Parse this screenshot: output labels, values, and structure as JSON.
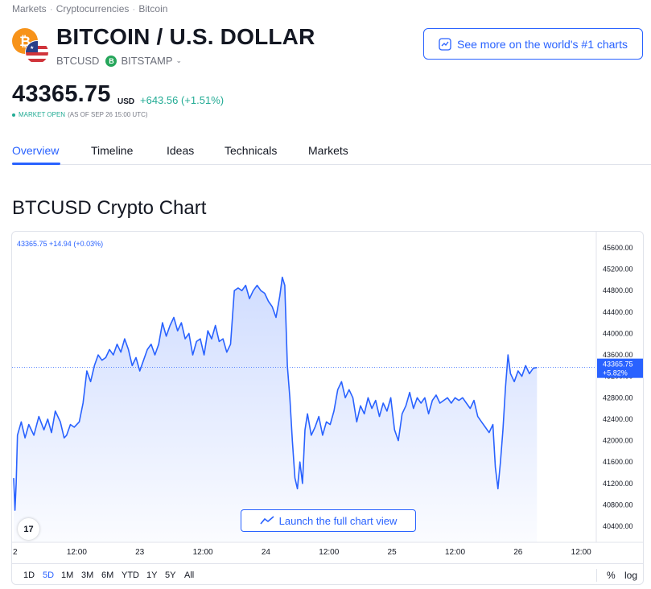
{
  "breadcrumb": [
    "Markets",
    "Cryptocurrencies",
    "Bitcoin"
  ],
  "header": {
    "title": "BITCOIN / U.S. DOLLAR",
    "symbol": "BTCUSD",
    "exchange_badge": "B",
    "exchange": "BITSTAMP",
    "more_charts_label": "See more on the world's #1 charts"
  },
  "quote": {
    "price": "43365.75",
    "currency": "USD",
    "change": "+643.56 (+1.51%)",
    "status_open": "MARKET OPEN",
    "status_time": "(AS OF SEP 26 15:00 UTC)"
  },
  "tabs": [
    {
      "label": "Overview",
      "active": true
    },
    {
      "label": "Timeline",
      "active": false
    },
    {
      "label": "Ideas",
      "active": false
    },
    {
      "label": "Technicals",
      "active": false
    },
    {
      "label": "Markets",
      "active": false
    }
  ],
  "section_title": "BTCUSD Crypto Chart",
  "chart_data": {
    "type": "area",
    "legend_text": "43365.75  +14.94 (+0.03%)",
    "current_price_label": "43365.75",
    "current_change_label": "+5.82%",
    "current_price": 43365.75,
    "y_ticks": [
      "45600.00",
      "45200.00",
      "44800.00",
      "44400.00",
      "44000.00",
      "43600.00",
      "43200.00",
      "42800.00",
      "42400.00",
      "42000.00",
      "41600.00",
      "41200.00",
      "40800.00",
      "40400.00"
    ],
    "ylim": [
      40100,
      45900
    ],
    "x_ticks": [
      {
        "label": "2",
        "t": 0
      },
      {
        "label": "12:00",
        "t": 0.5
      },
      {
        "label": "23",
        "t": 1
      },
      {
        "label": "12:00",
        "t": 1.5
      },
      {
        "label": "24",
        "t": 2
      },
      {
        "label": "12:00",
        "t": 2.5
      },
      {
        "label": "25",
        "t": 3
      },
      {
        "label": "12:00",
        "t": 3.5
      },
      {
        "label": "26",
        "t": 4
      },
      {
        "label": "12:00",
        "t": 4.5
      }
    ],
    "xlim": [
      0,
      4.62
    ],
    "points": [
      [
        0.0,
        41300
      ],
      [
        0.01,
        40700
      ],
      [
        0.02,
        41200
      ],
      [
        0.03,
        42100
      ],
      [
        0.06,
        42350
      ],
      [
        0.09,
        42050
      ],
      [
        0.12,
        42300
      ],
      [
        0.16,
        42100
      ],
      [
        0.2,
        42450
      ],
      [
        0.24,
        42200
      ],
      [
        0.27,
        42400
      ],
      [
        0.3,
        42150
      ],
      [
        0.33,
        42550
      ],
      [
        0.37,
        42350
      ],
      [
        0.4,
        42050
      ],
      [
        0.42,
        42100
      ],
      [
        0.45,
        42300
      ],
      [
        0.48,
        42250
      ],
      [
        0.52,
        42350
      ],
      [
        0.55,
        42700
      ],
      [
        0.58,
        43300
      ],
      [
        0.61,
        43100
      ],
      [
        0.64,
        43400
      ],
      [
        0.67,
        43600
      ],
      [
        0.7,
        43500
      ],
      [
        0.73,
        43550
      ],
      [
        0.76,
        43700
      ],
      [
        0.79,
        43600
      ],
      [
        0.82,
        43800
      ],
      [
        0.85,
        43650
      ],
      [
        0.88,
        43900
      ],
      [
        0.91,
        43700
      ],
      [
        0.94,
        43400
      ],
      [
        0.97,
        43550
      ],
      [
        1.0,
        43300
      ],
      [
        1.03,
        43500
      ],
      [
        1.06,
        43700
      ],
      [
        1.09,
        43800
      ],
      [
        1.12,
        43600
      ],
      [
        1.15,
        43800
      ],
      [
        1.18,
        44200
      ],
      [
        1.21,
        43950
      ],
      [
        1.24,
        44150
      ],
      [
        1.27,
        44300
      ],
      [
        1.3,
        44050
      ],
      [
        1.33,
        44200
      ],
      [
        1.36,
        43900
      ],
      [
        1.39,
        44000
      ],
      [
        1.42,
        43600
      ],
      [
        1.45,
        43850
      ],
      [
        1.48,
        43900
      ],
      [
        1.51,
        43600
      ],
      [
        1.54,
        44050
      ],
      [
        1.57,
        43900
      ],
      [
        1.6,
        44150
      ],
      [
        1.63,
        43850
      ],
      [
        1.66,
        43900
      ],
      [
        1.69,
        43650
      ],
      [
        1.72,
        43800
      ],
      [
        1.75,
        44800
      ],
      [
        1.78,
        44850
      ],
      [
        1.81,
        44800
      ],
      [
        1.84,
        44900
      ],
      [
        1.87,
        44650
      ],
      [
        1.9,
        44800
      ],
      [
        1.93,
        44900
      ],
      [
        1.96,
        44800
      ],
      [
        1.99,
        44750
      ],
      [
        2.02,
        44600
      ],
      [
        2.05,
        44500
      ],
      [
        2.08,
        44300
      ],
      [
        2.11,
        44700
      ],
      [
        2.13,
        45050
      ],
      [
        2.15,
        44900
      ],
      [
        2.17,
        43400
      ],
      [
        2.19,
        42800
      ],
      [
        2.21,
        42000
      ],
      [
        2.23,
        41300
      ],
      [
        2.25,
        41100
      ],
      [
        2.27,
        41600
      ],
      [
        2.29,
        41200
      ],
      [
        2.31,
        42200
      ],
      [
        2.33,
        42500
      ],
      [
        2.36,
        42100
      ],
      [
        2.39,
        42250
      ],
      [
        2.42,
        42450
      ],
      [
        2.45,
        42100
      ],
      [
        2.48,
        42350
      ],
      [
        2.51,
        42300
      ],
      [
        2.54,
        42550
      ],
      [
        2.57,
        42950
      ],
      [
        2.6,
        43100
      ],
      [
        2.63,
        42800
      ],
      [
        2.66,
        42950
      ],
      [
        2.69,
        42800
      ],
      [
        2.72,
        42350
      ],
      [
        2.75,
        42650
      ],
      [
        2.78,
        42500
      ],
      [
        2.81,
        42800
      ],
      [
        2.84,
        42600
      ],
      [
        2.87,
        42750
      ],
      [
        2.9,
        42450
      ],
      [
        2.93,
        42700
      ],
      [
        2.96,
        42550
      ],
      [
        2.99,
        42800
      ],
      [
        3.02,
        42200
      ],
      [
        3.05,
        42000
      ],
      [
        3.08,
        42500
      ],
      [
        3.11,
        42650
      ],
      [
        3.14,
        42900
      ],
      [
        3.17,
        42600
      ],
      [
        3.2,
        42800
      ],
      [
        3.23,
        42700
      ],
      [
        3.26,
        42800
      ],
      [
        3.29,
        42500
      ],
      [
        3.32,
        42750
      ],
      [
        3.35,
        42850
      ],
      [
        3.38,
        42700
      ],
      [
        3.41,
        42750
      ],
      [
        3.44,
        42800
      ],
      [
        3.47,
        42700
      ],
      [
        3.5,
        42800
      ],
      [
        3.53,
        42750
      ],
      [
        3.56,
        42800
      ],
      [
        3.59,
        42700
      ],
      [
        3.62,
        42600
      ],
      [
        3.65,
        42750
      ],
      [
        3.68,
        42450
      ],
      [
        3.71,
        42350
      ],
      [
        3.74,
        42250
      ],
      [
        3.77,
        42150
      ],
      [
        3.8,
        42300
      ],
      [
        3.82,
        41500
      ],
      [
        3.84,
        41100
      ],
      [
        3.86,
        41600
      ],
      [
        3.88,
        42200
      ],
      [
        3.9,
        43000
      ],
      [
        3.92,
        43600
      ],
      [
        3.94,
        43250
      ],
      [
        3.97,
        43100
      ],
      [
        4.0,
        43300
      ],
      [
        4.03,
        43200
      ],
      [
        4.06,
        43400
      ],
      [
        4.09,
        43250
      ],
      [
        4.12,
        43350
      ],
      [
        4.15,
        43365
      ]
    ]
  },
  "chart_ui": {
    "launch_label": "Launch the full chart view",
    "tv_logo_text": "17"
  },
  "ranges": [
    {
      "label": "1D",
      "active": false
    },
    {
      "label": "5D",
      "active": true
    },
    {
      "label": "1M",
      "active": false
    },
    {
      "label": "3M",
      "active": false
    },
    {
      "label": "6M",
      "active": false
    },
    {
      "label": "YTD",
      "active": false
    },
    {
      "label": "1Y",
      "active": false
    },
    {
      "label": "5Y",
      "active": false
    },
    {
      "label": "All",
      "active": false
    }
  ],
  "scale_buttons": {
    "percent": "%",
    "log": "log"
  },
  "colors": {
    "accent": "#2962ff",
    "positive": "#22ab94",
    "bitcoin": "#f7931a",
    "line": "#2962ff"
  },
  "icons": {
    "coin": "bitcoin-icon",
    "flag": "usd-flag-icon",
    "chart": "chart-line-icon"
  }
}
